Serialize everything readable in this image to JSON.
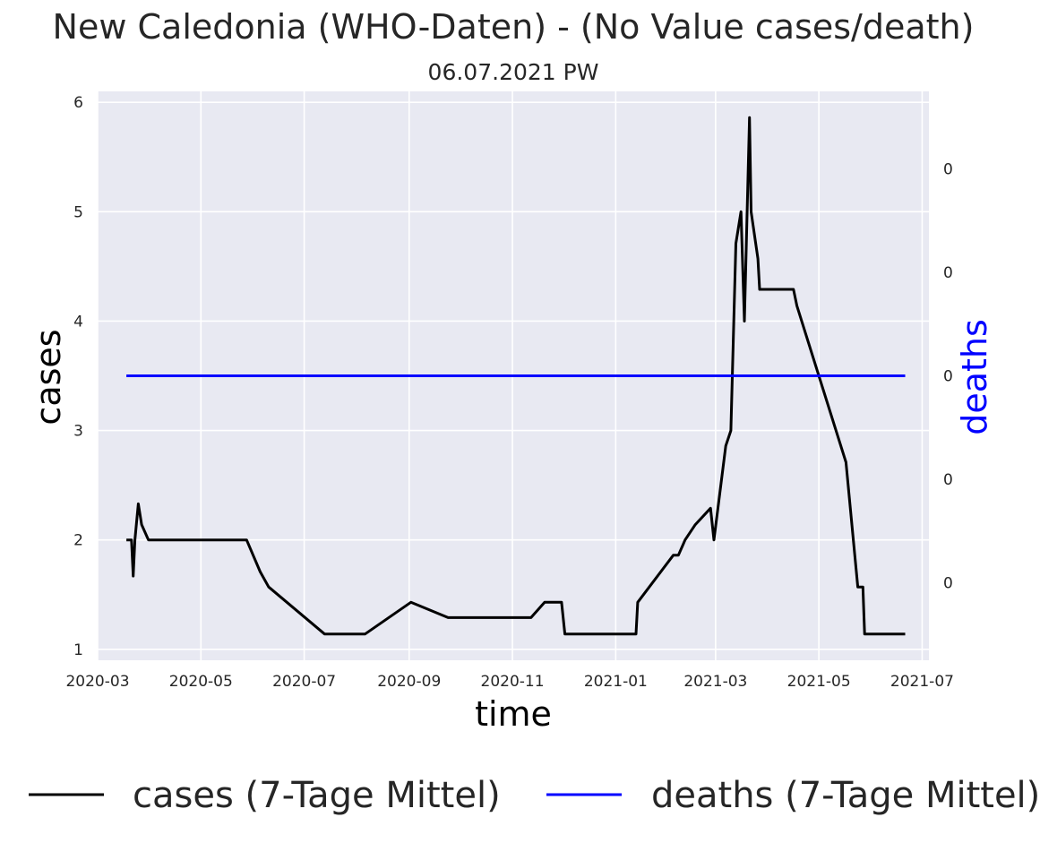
{
  "title": "New Caledonia (WHO-Daten) - (No Value cases/death)",
  "subtitle": "06.07.2021 PW",
  "colors": {
    "plot_background": "#e8e9f2",
    "grid": "#ffffff",
    "cases": "#000000",
    "deaths": "#0000ff"
  },
  "chart_data": {
    "type": "line",
    "title": "New Caledonia (WHO-Daten) - (No Value cases/death)",
    "subtitle": "06.07.2021 PW",
    "xlabel": "time",
    "ylabel": "cases",
    "y2label": "deaths",
    "grid": true,
    "legend_position": "bottom",
    "xlim": [
      "2020-03-01",
      "2021-07-05"
    ],
    "ylim": [
      0.9,
      6.1
    ],
    "x_ticks": [
      {
        "date": "2020-03-01",
        "label": "2020-03"
      },
      {
        "date": "2020-05-01",
        "label": "2020-05"
      },
      {
        "date": "2020-07-01",
        "label": "2020-07"
      },
      {
        "date": "2020-09-01",
        "label": "2020-09"
      },
      {
        "date": "2020-11-01",
        "label": "2020-11"
      },
      {
        "date": "2021-01-01",
        "label": "2021-01"
      },
      {
        "date": "2021-03-01",
        "label": "2021-03"
      },
      {
        "date": "2021-05-01",
        "label": "2021-05"
      },
      {
        "date": "2021-07-01",
        "label": "2021-07"
      }
    ],
    "y_ticks": [
      1,
      2,
      3,
      4,
      5,
      6
    ],
    "y2_tick_labels": [
      "0",
      "0",
      "0",
      "0",
      "0"
    ],
    "y2_tick_values": [
      0.04,
      0.02,
      0,
      -0.02,
      -0.04
    ],
    "y2lim": [
      -0.055,
      0.055
    ],
    "series": [
      {
        "name": "cases (7-Tage Mittel)",
        "axis": "left",
        "color": "#000000",
        "points": [
          [
            "2020-03-18",
            2.0
          ],
          [
            "2020-03-21",
            2.0
          ],
          [
            "2020-03-22",
            1.67
          ],
          [
            "2020-03-23",
            2.0
          ],
          [
            "2020-03-25",
            2.33
          ],
          [
            "2020-03-27",
            2.14
          ],
          [
            "2020-03-31",
            2.0
          ],
          [
            "2020-05-28",
            2.0
          ],
          [
            "2020-06-05",
            1.71
          ],
          [
            "2020-06-10",
            1.57
          ],
          [
            "2020-07-13",
            1.14
          ],
          [
            "2020-08-06",
            1.14
          ],
          [
            "2020-09-02",
            1.43
          ],
          [
            "2020-09-24",
            1.29
          ],
          [
            "2020-11-12",
            1.29
          ],
          [
            "2020-11-20",
            1.43
          ],
          [
            "2020-11-30",
            1.43
          ],
          [
            "2020-12-02",
            1.14
          ],
          [
            "2021-01-13",
            1.14
          ],
          [
            "2021-01-14",
            1.43
          ],
          [
            "2021-02-04",
            1.86
          ],
          [
            "2021-02-07",
            1.86
          ],
          [
            "2021-02-11",
            2.0
          ],
          [
            "2021-02-17",
            2.14
          ],
          [
            "2021-02-26",
            2.29
          ],
          [
            "2021-02-28",
            2.0
          ],
          [
            "2021-03-07",
            2.86
          ],
          [
            "2021-03-10",
            3.0
          ],
          [
            "2021-03-13",
            4.71
          ],
          [
            "2021-03-16",
            5.0
          ],
          [
            "2021-03-18",
            4.0
          ],
          [
            "2021-03-21",
            5.86
          ],
          [
            "2021-03-22",
            5.0
          ],
          [
            "2021-03-26",
            4.57
          ],
          [
            "2021-03-27",
            4.29
          ],
          [
            "2021-04-16",
            4.29
          ],
          [
            "2021-04-18",
            4.14
          ],
          [
            "2021-05-17",
            2.71
          ],
          [
            "2021-05-24",
            1.57
          ],
          [
            "2021-05-27",
            1.57
          ],
          [
            "2021-05-28",
            1.14
          ],
          [
            "2021-06-21",
            1.14
          ]
        ]
      },
      {
        "name": "deaths (7-Tage Mittel)",
        "axis": "right",
        "color": "#0000ff",
        "points": [
          [
            "2020-03-18",
            0
          ],
          [
            "2021-06-21",
            0
          ]
        ]
      }
    ]
  },
  "legend": [
    {
      "label": "cases (7-Tage Mittel)",
      "color": "#000000"
    },
    {
      "label": "deaths (7-Tage Mittel)",
      "color": "#0000ff"
    }
  ]
}
